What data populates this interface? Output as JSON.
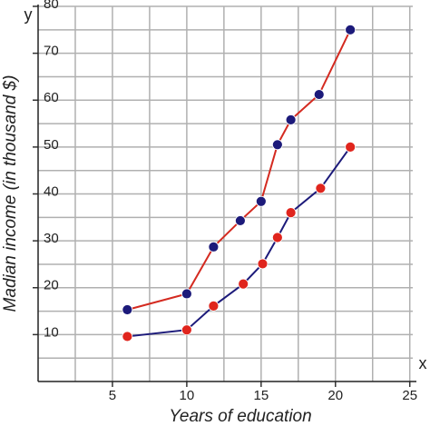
{
  "chart_data": {
    "type": "line",
    "x_label": "Years of education",
    "y_label": "Madian income (in thousand $)",
    "x_axis_letter": "x",
    "y_axis_letter": "y",
    "xlim": [
      0,
      25.2
    ],
    "ylim": [
      0,
      80
    ],
    "xticks": [
      5,
      10,
      15,
      20,
      25
    ],
    "yticks": [
      10,
      20,
      30,
      40,
      50,
      60,
      70,
      80
    ],
    "x_minor_ticks": [
      2.5,
      7.5,
      12.5,
      17.5,
      22.5
    ],
    "y_minor_ticks": [
      5,
      15,
      25,
      35,
      45,
      55,
      65,
      75
    ],
    "grid": true,
    "grid_color": "#b0b0b0",
    "series": [
      {
        "color": "#1c1a7a",
        "line_color": "#d42a20",
        "x": [
          6,
          10,
          11.8,
          13.6,
          15,
          16.1,
          17,
          18.9,
          21
        ],
        "values": [
          15.3,
          18.7,
          28.7,
          34.3,
          38.4,
          50.5,
          55.8,
          61.2,
          75
        ]
      },
      {
        "color": "#e0251d",
        "line_color": "#1c1a7a",
        "x": [
          6,
          10,
          11.8,
          13.8,
          15.1,
          16.1,
          17,
          19,
          21
        ],
        "values": [
          9.6,
          11,
          16.1,
          20.8,
          25.1,
          30.7,
          36,
          41.2,
          50
        ]
      }
    ]
  }
}
